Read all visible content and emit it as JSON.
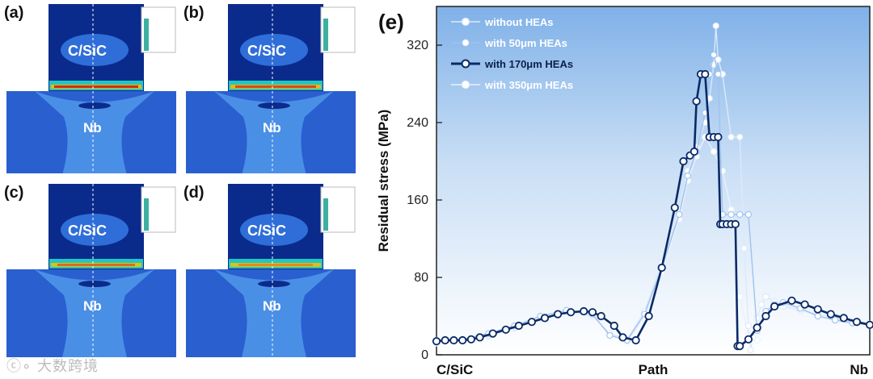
{
  "panels": [
    {
      "label": "(a)",
      "top_material": "C/SiC",
      "bottom_material": "Nb"
    },
    {
      "label": "(b)",
      "top_material": "C/SiC",
      "bottom_material": "Nb"
    },
    {
      "label": "(c)",
      "top_material": "C/SiC",
      "bottom_material": "Nb"
    },
    {
      "label": "(d)",
      "top_material": "C/SiC",
      "bottom_material": "Nb"
    }
  ],
  "colors": {
    "series": [
      "#dce9fb",
      "#9fc2ee",
      "#0a2a66",
      "#e8f1fd"
    ],
    "contour_deep": "#0b2b8c",
    "contour_blue": "#2f6ed8"
  },
  "watermark": "大数跨境",
  "chart_data": {
    "type": "line",
    "panel_label": "(e)",
    "title": "",
    "xlabel": "",
    "ylabel": "Residual stress (MPa)",
    "x_categories": [
      "C/SiC",
      "Path",
      "Nb"
    ],
    "xlim": [
      0,
      100
    ],
    "ylim": [
      0,
      360
    ],
    "yticks": [
      0,
      80,
      160,
      240,
      320
    ],
    "legend_position": "top-left",
    "series": [
      {
        "name": "without HEAs",
        "x": [
          0,
          6,
          12,
          18,
          24,
          30,
          36,
          40,
          44,
          48,
          52,
          56,
          58,
          60,
          62,
          63,
          64,
          64.5,
          65,
          66,
          68,
          70,
          71,
          72,
          72.5,
          73,
          74,
          75,
          76,
          78,
          80,
          84,
          88,
          92,
          96,
          100
        ],
        "y": [
          14,
          16,
          20,
          28,
          38,
          45,
          40,
          22,
          16,
          45,
          95,
          150,
          190,
          215,
          240,
          265,
          300,
          340,
          305,
          290,
          225,
          225,
          110,
          30,
          5,
          18,
          38,
          52,
          60,
          55,
          50,
          46,
          42,
          38,
          34,
          32
        ]
      },
      {
        "name": "with 50μm HEAs",
        "x": [
          0,
          6,
          12,
          18,
          24,
          30,
          36,
          40,
          44,
          48,
          52,
          56,
          58,
          60,
          62,
          63,
          64,
          65,
          66,
          68,
          70,
          72,
          74,
          76,
          78,
          80,
          84,
          88,
          92,
          96,
          100
        ],
        "y": [
          15,
          16,
          22,
          30,
          40,
          46,
          42,
          20,
          15,
          42,
          90,
          145,
          185,
          210,
          250,
          290,
          310,
          290,
          145,
          145,
          145,
          145,
          25,
          45,
          52,
          54,
          48,
          40,
          36,
          33,
          31
        ]
      },
      {
        "name": "with 170μm HEAs",
        "x": [
          0,
          2,
          4,
          6,
          8,
          10,
          13,
          16,
          19,
          22,
          25,
          28,
          31,
          34,
          36,
          38,
          41,
          43,
          46,
          49,
          52,
          55,
          57,
          58.5,
          59.5,
          60,
          61,
          62,
          63,
          64,
          65,
          65.5,
          66,
          67,
          68,
          69,
          69.5,
          70,
          72,
          74,
          76,
          78,
          82,
          85,
          88,
          91,
          94,
          97,
          100
        ],
        "y": [
          14,
          15,
          15,
          15,
          16,
          18,
          22,
          26,
          30,
          34,
          38,
          42,
          44,
          45,
          44,
          40,
          30,
          18,
          15,
          40,
          90,
          152,
          200,
          206,
          210,
          262,
          290,
          290,
          225,
          225,
          225,
          135,
          135,
          135,
          135,
          135,
          9,
          9,
          16,
          28,
          40,
          50,
          56,
          52,
          47,
          42,
          38,
          34,
          31
        ]
      },
      {
        "name": "with 350μm HEAs",
        "x": [
          0,
          6,
          12,
          18,
          24,
          30,
          36,
          40,
          44,
          48,
          52,
          56,
          58,
          60,
          62,
          64,
          66,
          68,
          70,
          72,
          74,
          76,
          78,
          80,
          84,
          88,
          92,
          96,
          100
        ],
        "y": [
          12,
          14,
          19,
          27,
          37,
          44,
          41,
          21,
          14,
          38,
          85,
          140,
          180,
          205,
          225,
          210,
          190,
          150,
          60,
          20,
          15,
          40,
          50,
          52,
          46,
          40,
          35,
          32,
          30
        ]
      }
    ]
  }
}
